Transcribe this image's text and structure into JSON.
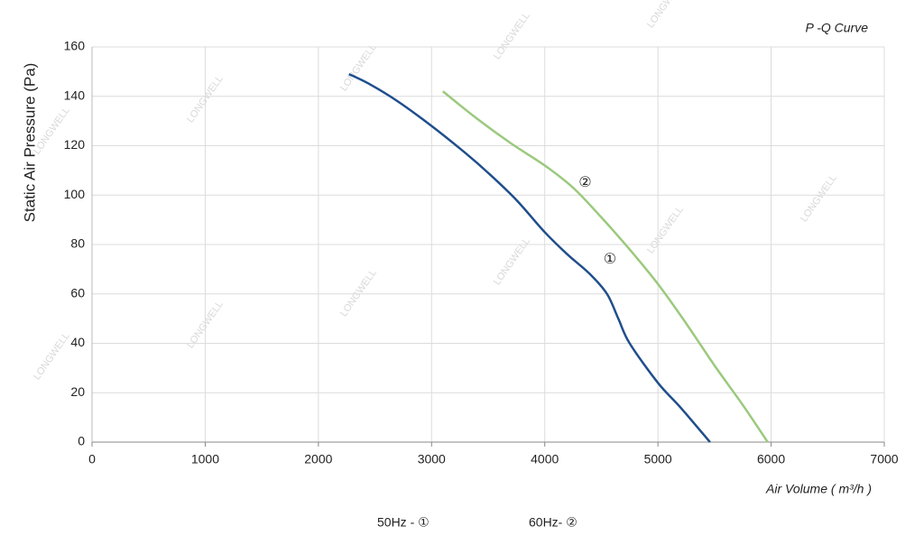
{
  "chart_data": {
    "type": "line",
    "title": "P -Q Curve",
    "y_label": "Static Air Pressure  (Pa)",
    "x_label": "Air Volume ( m³/h )",
    "watermark": "LONGWELL",
    "xlim": [
      0,
      7000
    ],
    "xticks": [
      0,
      1000,
      2000,
      3000,
      4000,
      5000,
      6000,
      7000
    ],
    "ylim": [
      0,
      160
    ],
    "yticks": [
      0,
      20,
      40,
      60,
      80,
      100,
      120,
      140,
      160
    ],
    "grid": true,
    "series": [
      {
        "name": "50Hz - ①",
        "label": "①",
        "color": "#1f4e8c",
        "x": [
          2270,
          2450,
          2700,
          3000,
          3300,
          3500,
          3750,
          4000,
          4200,
          4400,
          4550,
          4650,
          4750,
          5000,
          5200,
          5460
        ],
        "values": [
          149,
          145,
          138,
          128,
          117,
          109,
          98,
          85,
          76,
          68,
          60,
          50,
          40,
          24,
          14,
          0
        ]
      },
      {
        "name": "60Hz- ②",
        "label": "②",
        "color": "#9bc97d",
        "x": [
          3100,
          3400,
          3700,
          4000,
          4250,
          4500,
          4750,
          5000,
          5250,
          5500,
          5750,
          5970
        ],
        "values": [
          142,
          131,
          121,
          112,
          103,
          91,
          78,
          64,
          48,
          31,
          15,
          0
        ]
      }
    ]
  }
}
